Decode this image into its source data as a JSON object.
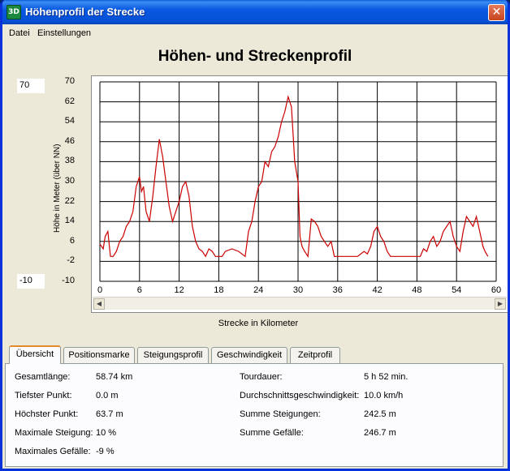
{
  "window": {
    "title": "Höhenprofil der Strecke",
    "app_icon_text": "3D"
  },
  "menu": {
    "items": [
      "Datei",
      "Einstellungen"
    ]
  },
  "chart_data": {
    "type": "line",
    "title": "Höhen- und Streckenprofil",
    "xlabel": "Strecke in Kilometer",
    "ylabel": "Höhe in Meter (über NN)",
    "xlim": [
      0,
      60
    ],
    "ylim": [
      -10,
      70
    ],
    "x_ticks": [
      "0",
      "6",
      "12",
      "18",
      "24",
      "30",
      "36",
      "42",
      "48",
      "54",
      "60"
    ],
    "y_ticks": [
      "70",
      "62",
      "54",
      "46",
      "38",
      "30",
      "22",
      "14",
      "6",
      "-2",
      "-10"
    ],
    "grid": true,
    "series_color": "#cc0000",
    "x": [
      0,
      0.5,
      0.8,
      1.2,
      1.6,
      2.0,
      2.5,
      3.0,
      3.5,
      4.0,
      4.5,
      5.0,
      5.5,
      6.0,
      6.3,
      6.6,
      7.0,
      7.5,
      8.0,
      8.5,
      9.0,
      9.5,
      10.0,
      10.5,
      11.0,
      11.5,
      12.0,
      12.5,
      13.0,
      13.5,
      14.0,
      14.5,
      15.0,
      15.5,
      16.0,
      16.5,
      17.0,
      17.5,
      18.0,
      18.5,
      19.0,
      20.0,
      21.0,
      22.0,
      22.5,
      23.0,
      23.5,
      24.0,
      24.5,
      25.0,
      25.5,
      26.0,
      26.5,
      27.0,
      27.5,
      28.0,
      28.5,
      29.0,
      29.5,
      30.0,
      30.3,
      30.6,
      31.0,
      31.5,
      32.0,
      32.5,
      33.0,
      33.5,
      34.0,
      34.5,
      35.0,
      35.5,
      36.0,
      37.0,
      38.0,
      39.0,
      40.0,
      40.5,
      41.0,
      41.5,
      42.0,
      42.5,
      43.0,
      43.5,
      44.0,
      45.0,
      46.0,
      47.0,
      48.0,
      48.5,
      49.0,
      49.5,
      50.0,
      50.5,
      51.0,
      51.5,
      52.0,
      52.5,
      53.0,
      53.5,
      54.0,
      54.5,
      55.0,
      55.5,
      56.0,
      56.5,
      57.0,
      57.5,
      58.0,
      58.3,
      58.74
    ],
    "y": [
      5,
      3,
      8,
      10,
      0,
      0,
      2,
      6,
      8,
      12,
      14,
      18,
      28,
      32,
      26,
      28,
      18,
      14,
      24,
      36,
      47,
      40,
      30,
      20,
      14,
      18,
      22,
      28,
      30,
      24,
      12,
      6,
      3,
      2,
      0,
      3,
      2,
      0,
      0,
      0,
      2,
      3,
      2,
      0,
      10,
      14,
      22,
      28,
      30,
      38,
      36,
      42,
      44,
      48,
      54,
      58,
      64,
      60,
      38,
      30,
      8,
      4,
      2,
      0,
      15,
      14,
      12,
      8,
      6,
      4,
      6,
      0,
      0,
      0,
      0,
      0,
      2,
      1,
      4,
      10,
      12,
      8,
      6,
      2,
      0,
      0,
      0,
      0,
      0,
      0,
      3,
      2,
      6,
      8,
      4,
      6,
      10,
      12,
      14,
      8,
      4,
      2,
      10,
      16,
      14,
      12,
      16,
      10,
      4,
      2,
      0
    ]
  },
  "y_range_boxes": {
    "max": "70",
    "min": "-10"
  },
  "tabs": [
    "Übersicht",
    "Positionsmarke",
    "Steigungsprofil",
    "Geschwindigkeit",
    "Zeitprofil"
  ],
  "stats_left": [
    {
      "label": "Gesamtlänge:",
      "value": "58.74 km"
    },
    {
      "label": "Tiefster Punkt:",
      "value": "0.0 m"
    },
    {
      "label": "Höchster Punkt:",
      "value": "63.7 m"
    },
    {
      "label": "Maximale Steigung:",
      "value": "10 %"
    },
    {
      "label": "Maximales Gefälle:",
      "value": "-9 %"
    }
  ],
  "stats_right": [
    {
      "label": "Tourdauer:",
      "value": "5 h 52 min."
    },
    {
      "label": "Durchschnittsgeschwindigkeit:",
      "value": "10.0 km/h"
    },
    {
      "label": "Summe Steigungen:",
      "value": "242.5 m"
    },
    {
      "label": "Summe Gefälle:",
      "value": "246.7 m"
    }
  ],
  "icons": {
    "close": "close-icon",
    "scroll_left": "arrow-left-icon",
    "scroll_right": "arrow-right-icon"
  }
}
